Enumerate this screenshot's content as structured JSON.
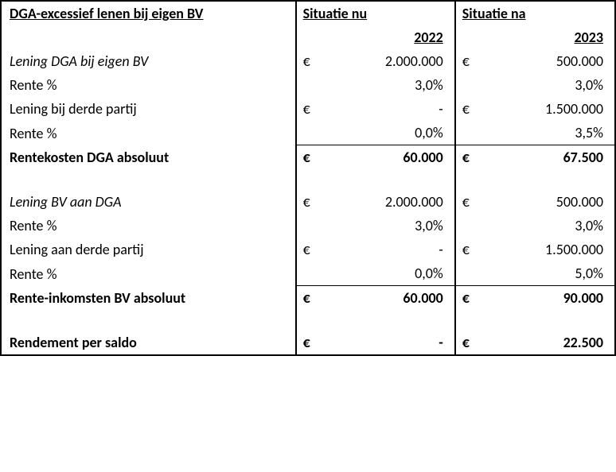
{
  "title": "DGA-excessief lenen bij eigen BV",
  "col_nu_header": "Situatie nu",
  "col_na_header": "Situatie na",
  "year_nu": "2022",
  "year_na": "2023",
  "currency": "€",
  "dash": "-",
  "rows": {
    "lening_dga": {
      "label": "Lening DGA bij eigen BV",
      "nu": "2.000.000",
      "na": "500.000",
      "nu_cur": true,
      "na_cur": true
    },
    "rente_dga": {
      "label": "Rente %",
      "nu": "3,0%",
      "na": "3,0%",
      "nu_cur": false,
      "na_cur": false
    },
    "lening_derde": {
      "label": "Lening bij derde partij",
      "nu": "-",
      "na": "1.500.000",
      "nu_cur": true,
      "na_cur": true
    },
    "rente_derde": {
      "label": "Rente %",
      "nu": "0,0%",
      "na": "3,5%",
      "nu_cur": false,
      "na_cur": false
    },
    "rentekosten": {
      "label": "Rentekosten DGA absoluut",
      "nu": "60.000",
      "na": "67.500",
      "nu_cur": true,
      "na_cur": true
    },
    "lening_bv": {
      "label": "Lening BV aan DGA",
      "nu": "2.000.000",
      "na": "500.000",
      "nu_cur": true,
      "na_cur": true
    },
    "rente_bv": {
      "label": "Rente %",
      "nu": "3,0%",
      "na": "3,0%",
      "nu_cur": false,
      "na_cur": false
    },
    "lening_bv_derde": {
      "label": "Lening aan derde partij",
      "nu": "-",
      "na": "1.500.000",
      "nu_cur": true,
      "na_cur": true
    },
    "rente_bv_derde": {
      "label": "Rente %",
      "nu": "0,0%",
      "na": "5,0%",
      "nu_cur": false,
      "na_cur": false
    },
    "rente_inkomsten": {
      "label": "Rente-inkomsten BV absoluut",
      "nu": "60.000",
      "na": "90.000",
      "nu_cur": true,
      "na_cur": true
    },
    "rendement": {
      "label": "Rendement per saldo",
      "nu": "-",
      "na": "22.500",
      "nu_cur": true,
      "na_cur": true
    }
  }
}
